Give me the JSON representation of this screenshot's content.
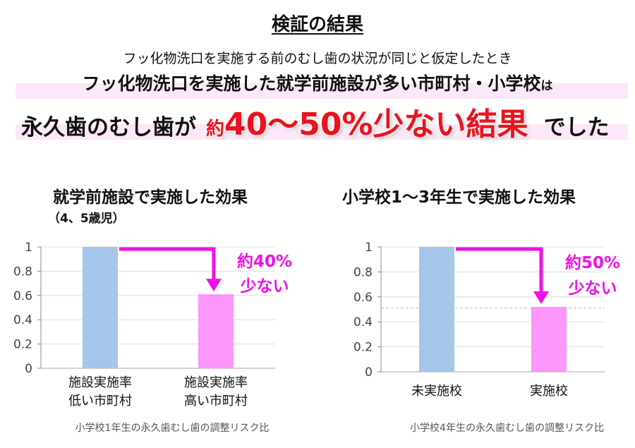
{
  "header": {
    "title": "検証の結果",
    "line1": "フッ化物洗口を実施する前のむし歯の状況が同じと仮定したとき",
    "line2_main": "フッ化物洗口を実施した就学前施設が多い市町村・小学校",
    "line2_suffix": "は",
    "line3_prefix": "永久歯のむし歯が",
    "line3_highlight_small": "約",
    "line3_highlight": "40～50%少ない結果",
    "line3_suffix": "でした"
  },
  "colors": {
    "highlight_red": "#e8141e",
    "annotation_magenta": "#f010e8",
    "bar_blue": "#a4c6ea",
    "bar_pink": "#fd96fa",
    "band_pink": "#fbe8f8"
  },
  "chart_data": [
    {
      "type": "bar",
      "title": "就学前施設で実施した効果",
      "subtitle": "（4、5歳児）",
      "categories": [
        "施設実施率\n低い市町村",
        "施設実施率\n高い市町村"
      ],
      "category_lines": [
        [
          "施設実施率",
          "低い市町村"
        ],
        [
          "施設実施率",
          "高い市町村"
        ]
      ],
      "values": [
        1,
        0.61
      ],
      "bar_colors": [
        "#a4c6ea",
        "#fd96fa"
      ],
      "ylim": [
        0,
        1
      ],
      "yticks": [
        "0",
        "0.2",
        "0.4",
        "0.6",
        "0.8",
        "1"
      ],
      "grid": true,
      "xlabel": "小学校1年生の永久歯むし歯の調整リスク比",
      "annotation": [
        "約40%",
        "少ない"
      ]
    },
    {
      "type": "bar",
      "title": "小学校1～3年生で実施した効果",
      "categories": [
        "未実施校",
        "実施校"
      ],
      "category_lines": [
        [
          "未実施校"
        ],
        [
          "実施校"
        ]
      ],
      "values": [
        1,
        0.52
      ],
      "bar_colors": [
        "#a4c6ea",
        "#fd96fa"
      ],
      "ylim": [
        0,
        1
      ],
      "yticks": [
        "0",
        "0.2",
        "0.4",
        "0.6",
        "0.8",
        "1"
      ],
      "grid": true,
      "reference_line": 0.51,
      "xlabel": "小学校4年生の永久歯むし歯の調整リスク比",
      "annotation": [
        "約50%",
        "少ない"
      ]
    }
  ]
}
